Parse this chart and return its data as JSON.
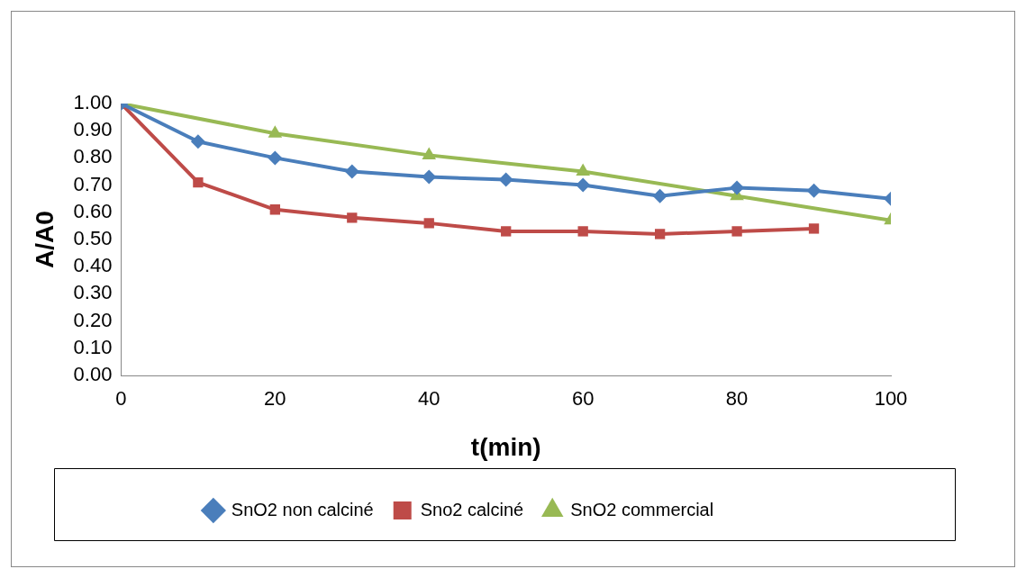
{
  "chart_data": {
    "type": "line",
    "xlabel": "t(min)",
    "ylabel": "A/A0",
    "xlim": [
      0,
      100
    ],
    "xticks": [
      0,
      20,
      40,
      60,
      80,
      100
    ],
    "ylim": [
      0,
      1
    ],
    "yticks": [
      {
        "value": 0,
        "label": "0.00"
      },
      {
        "value": 0.1,
        "label": "0.10"
      },
      {
        "value": 0.2,
        "label": "0.20"
      },
      {
        "value": 0.3,
        "label": "0.30"
      },
      {
        "value": 0.4,
        "label": "0.40"
      },
      {
        "value": 0.5,
        "label": "0.50"
      },
      {
        "value": 0.6,
        "label": "0.60"
      },
      {
        "value": 0.7,
        "label": "0.70"
      },
      {
        "value": 0.8,
        "label": "0.80"
      },
      {
        "value": 0.9,
        "label": "0.90"
      },
      {
        "value": 1,
        "label": "1.00"
      }
    ],
    "grid": false,
    "legend": "bottom",
    "series": [
      {
        "name": "SnO2 non calciné",
        "color": "#4a7ebb",
        "marker": "diamond",
        "x": [
          0,
          10,
          20,
          30,
          40,
          50,
          60,
          70,
          80,
          90,
          100
        ],
        "values": [
          1.0,
          0.86,
          0.8,
          0.75,
          0.73,
          0.72,
          0.7,
          0.66,
          0.69,
          0.68,
          0.65
        ]
      },
      {
        "name": "Sno2 calciné",
        "color": "#be4b48",
        "marker": "square",
        "x": [
          0,
          10,
          20,
          30,
          40,
          50,
          60,
          70,
          80,
          90
        ],
        "values": [
          1.0,
          0.71,
          0.61,
          0.58,
          0.56,
          0.53,
          0.53,
          0.52,
          0.53,
          0.54
        ]
      },
      {
        "name": "SnO2 commercial",
        "color": "#98b954",
        "marker": "triangle",
        "x": [
          0,
          20,
          40,
          60,
          80,
          100
        ],
        "values": [
          1.0,
          0.89,
          0.81,
          0.75,
          0.66,
          0.57
        ]
      }
    ]
  }
}
